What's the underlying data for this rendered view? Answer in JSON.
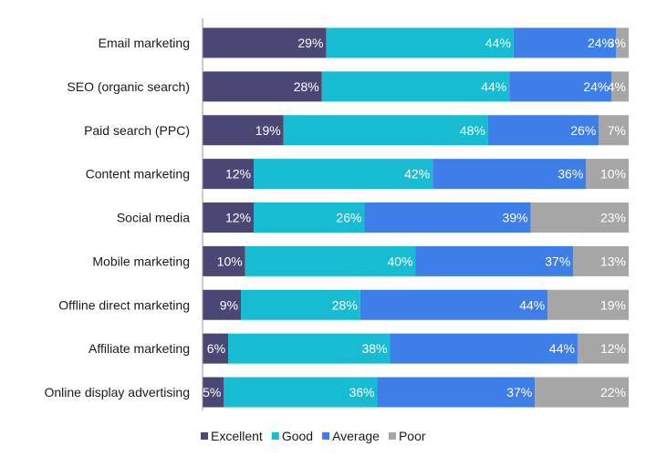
{
  "chart_data": {
    "type": "bar",
    "orientation": "horizontal",
    "stacked": true,
    "percent_stacked": true,
    "title": "",
    "xlabel": "",
    "ylabel": "",
    "xlim": [
      0,
      100
    ],
    "grid": false,
    "legend_position": "bottom",
    "categories": [
      "Email marketing",
      "SEO (organic search)",
      "Paid search (PPC)",
      "Content marketing",
      "Social media",
      "Mobile marketing",
      "Offline direct marketing",
      "Affiliate marketing",
      "Online display advertising"
    ],
    "series": [
      {
        "name": "Excellent",
        "color": "#4b4775",
        "values": [
          29,
          28,
          19,
          12,
          12,
          10,
          9,
          6,
          5
        ],
        "labels": [
          "29%",
          "28%",
          "19%",
          "12%",
          "12%",
          "10%",
          "9%",
          "6%",
          "5%"
        ]
      },
      {
        "name": "Good",
        "color": "#17bcd3",
        "values": [
          44,
          44,
          48,
          42,
          26,
          40,
          28,
          38,
          36
        ],
        "labels": [
          "44%",
          "44%",
          "48%",
          "42%",
          "26%",
          "40%",
          "28%",
          "38%",
          "36%"
        ]
      },
      {
        "name": "Average",
        "color": "#3d7ee8",
        "values": [
          24,
          24,
          26,
          36,
          39,
          37,
          44,
          44,
          37
        ],
        "labels": [
          "24%",
          "24%",
          "26%",
          "36%",
          "39%",
          "37%",
          "44%",
          "44%",
          "37%"
        ]
      },
      {
        "name": "Poor",
        "color": "#a6a6a6",
        "values": [
          3,
          4,
          7,
          10,
          23,
          13,
          19,
          12,
          22
        ],
        "labels": [
          "3%",
          "4%",
          "7%",
          "10%",
          "23%",
          "13%",
          "19%",
          "12%",
          "22%"
        ]
      }
    ]
  },
  "axis_color": "#999999"
}
